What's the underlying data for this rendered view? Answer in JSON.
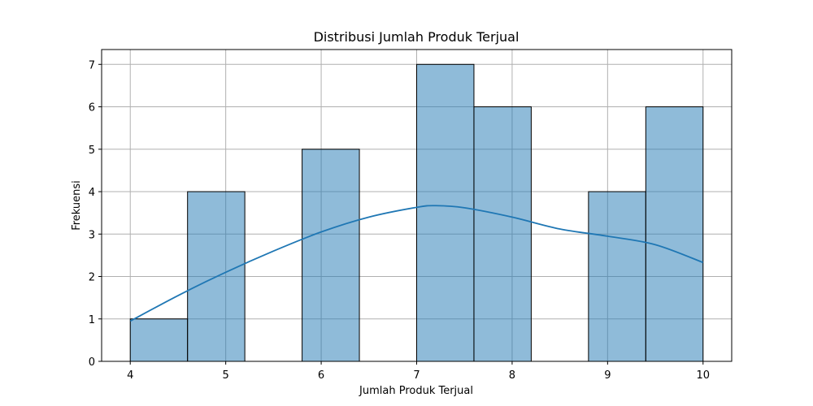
{
  "chart_data": {
    "type": "bar",
    "title": "Distribusi Jumlah Produk Terjual",
    "xlabel": "Jumlah Produk Terjual",
    "ylabel": "Frekuensi",
    "xlim": [
      3.7,
      10.3
    ],
    "ylim": [
      0,
      7.35
    ],
    "x_ticks": [
      4,
      5,
      6,
      7,
      8,
      9,
      10
    ],
    "y_ticks": [
      0,
      1,
      2,
      3,
      4,
      5,
      6,
      7
    ],
    "grid": true,
    "bins": [
      {
        "start": 4.0,
        "end": 4.6,
        "count": 1
      },
      {
        "start": 4.6,
        "end": 5.2,
        "count": 4
      },
      {
        "start": 5.2,
        "end": 5.8,
        "count": 0
      },
      {
        "start": 5.8,
        "end": 6.4,
        "count": 5
      },
      {
        "start": 6.4,
        "end": 7.0,
        "count": 0
      },
      {
        "start": 7.0,
        "end": 7.6,
        "count": 7
      },
      {
        "start": 7.6,
        "end": 8.2,
        "count": 6
      },
      {
        "start": 8.2,
        "end": 8.8,
        "count": 0
      },
      {
        "start": 8.8,
        "end": 9.4,
        "count": 4
      },
      {
        "start": 9.4,
        "end": 10.0,
        "count": 6
      }
    ],
    "kde": {
      "x": [
        4.0,
        4.5,
        5.0,
        5.5,
        6.0,
        6.5,
        7.0,
        7.2,
        7.5,
        8.0,
        8.5,
        9.0,
        9.5,
        10.0
      ],
      "y": [
        0.95,
        1.55,
        2.1,
        2.6,
        3.05,
        3.4,
        3.63,
        3.67,
        3.62,
        3.4,
        3.12,
        2.95,
        2.75,
        2.33
      ]
    },
    "colors": {
      "bar_fill": "rgba(31,119,180,0.5)",
      "line": "#1f77b4"
    }
  }
}
